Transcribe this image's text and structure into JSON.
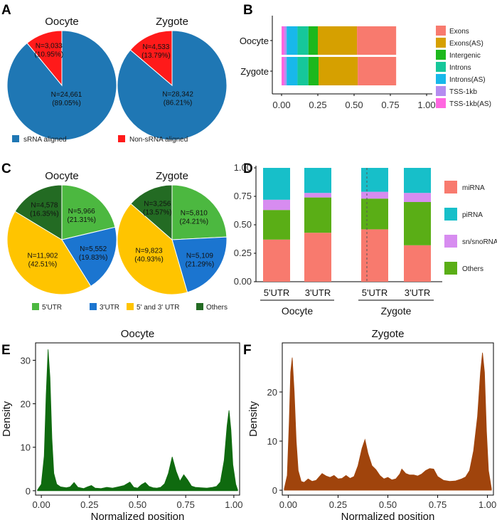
{
  "panels": {
    "A": "A",
    "B": "B",
    "C": "C",
    "D": "D",
    "E": "E",
    "F": "F"
  },
  "chart_data": [
    {
      "id": "A",
      "type": "pie",
      "titles": [
        "Oocyte",
        "Zygote"
      ],
      "legend": [
        {
          "label": "sRNA aligned",
          "color": "#1f77b4"
        },
        {
          "label": "Non-sRNA aligned",
          "color": "#ff1a1a"
        }
      ],
      "pies": [
        {
          "title": "Oocyte",
          "slices": [
            {
              "name": "sRNA aligned",
              "n": "N=24,661",
              "pct": "(89.05%)",
              "value": 89.05,
              "color": "#1f77b4"
            },
            {
              "name": "Non-sRNA aligned",
              "n": "N=3,033",
              "pct": "(10.95%)",
              "value": 10.95,
              "color": "#ff1a1a"
            }
          ]
        },
        {
          "title": "Zygote",
          "slices": [
            {
              "name": "sRNA aligned",
              "n": "N=28,342",
              "pct": "(86.21%)",
              "value": 86.21,
              "color": "#1f77b4"
            },
            {
              "name": "Non-sRNA aligned",
              "n": "N=4,533",
              "pct": "(13.79%)",
              "value": 13.79,
              "color": "#ff1a1a"
            }
          ]
        }
      ]
    },
    {
      "id": "B",
      "type": "bar",
      "orientation": "horizontal-stacked",
      "categories": [
        "Oocyte",
        "Zygote"
      ],
      "xlim": [
        0,
        1
      ],
      "xticks": [
        "0.00",
        "0.25",
        "0.50",
        "0.75",
        "1.00"
      ],
      "series": [
        {
          "name": "TSS-1kb(AS)",
          "color": "#ff66e0",
          "values": [
            0.02,
            0.02
          ]
        },
        {
          "name": "TSS-1kb",
          "color": "#b48cf0",
          "values": [
            0.015,
            0.015
          ]
        },
        {
          "name": "Introns(AS)",
          "color": "#18b8ea",
          "values": [
            0.075,
            0.075
          ]
        },
        {
          "name": "Introns",
          "color": "#16c79a",
          "values": [
            0.075,
            0.075
          ]
        },
        {
          "name": "Intergenic",
          "color": "#1db81d",
          "values": [
            0.065,
            0.07
          ]
        },
        {
          "name": "Exons(AS)",
          "color": "#d6a000",
          "values": [
            0.27,
            0.27
          ]
        },
        {
          "name": "Exons",
          "color": "#f87a6e",
          "values": [
            0.27,
            0.265
          ]
        }
      ],
      "legend_order": [
        "Exons",
        "Exons(AS)",
        "Intergenic",
        "Introns",
        "Introns(AS)",
        "TSS-1kb",
        "TSS-1kb(AS)"
      ]
    },
    {
      "id": "C",
      "type": "pie",
      "titles": [
        "Oocyte",
        "Zygote"
      ],
      "legend": [
        {
          "label": "5'UTR",
          "color": "#4cb840"
        },
        {
          "label": "3'UTR",
          "color": "#1b75d0"
        },
        {
          "label": "5' and 3' UTR",
          "color": "#ffc400"
        },
        {
          "label": "Others",
          "color": "#236b23"
        }
      ],
      "pies": [
        {
          "title": "Oocyte",
          "slices": [
            {
              "name": "5'UTR",
              "n": "N=5,966",
              "pct": "(21.31%)",
              "value": 21.31,
              "color": "#4cb840"
            },
            {
              "name": "3'UTR",
              "n": "N=5,552",
              "pct": "(19.83%)",
              "value": 19.83,
              "color": "#1b75d0"
            },
            {
              "name": "5' and 3' UTR",
              "n": "N=11,902",
              "pct": "(42.51%)",
              "value": 42.51,
              "color": "#ffc400"
            },
            {
              "name": "Others",
              "n": "N=4,578",
              "pct": "(16.35%)",
              "value": 16.35,
              "color": "#236b23"
            }
          ]
        },
        {
          "title": "Zygote",
          "slices": [
            {
              "name": "5'UTR",
              "n": "N=5,810",
              "pct": "(24.21%)",
              "value": 24.21,
              "color": "#4cb840"
            },
            {
              "name": "3'UTR",
              "n": "N=5,109",
              "pct": "(21.29%)",
              "value": 21.29,
              "color": "#1b75d0"
            },
            {
              "name": "5' and 3' UTR",
              "n": "N=9,823",
              "pct": "(40.93%)",
              "value": 40.93,
              "color": "#ffc400"
            },
            {
              "name": "Others",
              "n": "N=3,256",
              "pct": "(13.57%)",
              "value": 13.57,
              "color": "#236b23"
            }
          ]
        }
      ]
    },
    {
      "id": "D",
      "type": "bar",
      "orientation": "vertical-stacked",
      "ylim": [
        0,
        1
      ],
      "yticks": [
        "0.00",
        "0.25",
        "0.50",
        "0.75",
        "1.00"
      ],
      "categories": [
        "5'UTR",
        "3'UTR",
        "5'UTR",
        "3'UTR"
      ],
      "groups": [
        {
          "label": "Oocyte",
          "indices": [
            0,
            1
          ]
        },
        {
          "label": "Zygote",
          "indices": [
            2,
            3
          ]
        }
      ],
      "series": [
        {
          "name": "miRNA",
          "color": "#f87a6e",
          "values": [
            0.37,
            0.43,
            0.46,
            0.32
          ]
        },
        {
          "name": "Others",
          "color": "#5aae16",
          "values": [
            0.26,
            0.31,
            0.27,
            0.38
          ]
        },
        {
          "name": "sn/snoRNA",
          "color": "#d78cf0",
          "values": [
            0.09,
            0.04,
            0.06,
            0.08
          ]
        },
        {
          "name": "piRNA",
          "color": "#17bfc9",
          "values": [
            0.28,
            0.22,
            0.21,
            0.22
          ]
        }
      ],
      "legend_order": [
        "miRNA",
        "piRNA",
        "sn/snoRNA",
        "Others"
      ]
    },
    {
      "id": "E",
      "type": "area",
      "title": "Oocyte",
      "xlabel": "Normalized position",
      "ylabel": "Density",
      "xlim": [
        -0.03,
        1.03
      ],
      "ylim": [
        -1,
        34
      ],
      "xticks": [
        "0.00",
        "0.25",
        "0.50",
        "0.75",
        "1.00"
      ],
      "yticks": [
        "0",
        "10",
        "20",
        "30"
      ],
      "color": "#0f6a0f",
      "points": [
        [
          -0.02,
          0.2
        ],
        [
          0.0,
          1.5
        ],
        [
          0.015,
          8
        ],
        [
          0.025,
          22
        ],
        [
          0.035,
          32.5
        ],
        [
          0.045,
          26
        ],
        [
          0.055,
          12
        ],
        [
          0.065,
          4
        ],
        [
          0.08,
          1.5
        ],
        [
          0.1,
          0.9
        ],
        [
          0.13,
          0.7
        ],
        [
          0.15,
          0.9
        ],
        [
          0.17,
          1.9
        ],
        [
          0.19,
          0.8
        ],
        [
          0.22,
          0.5
        ],
        [
          0.24,
          0.9
        ],
        [
          0.26,
          1.2
        ],
        [
          0.28,
          0.6
        ],
        [
          0.31,
          0.5
        ],
        [
          0.34,
          0.8
        ],
        [
          0.37,
          0.6
        ],
        [
          0.4,
          0.9
        ],
        [
          0.43,
          1.2
        ],
        [
          0.46,
          2.0
        ],
        [
          0.48,
          0.8
        ],
        [
          0.5,
          0.6
        ],
        [
          0.52,
          1.4
        ],
        [
          0.54,
          1.9
        ],
        [
          0.56,
          1.0
        ],
        [
          0.58,
          0.7
        ],
        [
          0.6,
          0.6
        ],
        [
          0.62,
          0.8
        ],
        [
          0.64,
          1.6
        ],
        [
          0.66,
          4
        ],
        [
          0.68,
          7.8
        ],
        [
          0.7,
          4.5
        ],
        [
          0.72,
          2.2
        ],
        [
          0.74,
          3.7
        ],
        [
          0.76,
          2.5
        ],
        [
          0.78,
          1.1
        ],
        [
          0.8,
          0.8
        ],
        [
          0.83,
          0.7
        ],
        [
          0.86,
          0.6
        ],
        [
          0.89,
          0.8
        ],
        [
          0.91,
          1.0
        ],
        [
          0.93,
          2.0
        ],
        [
          0.95,
          7
        ],
        [
          0.965,
          15
        ],
        [
          0.975,
          18.5
        ],
        [
          0.985,
          14
        ],
        [
          0.995,
          6
        ],
        [
          1.01,
          1.5
        ],
        [
          1.02,
          0.2
        ]
      ]
    },
    {
      "id": "F",
      "type": "area",
      "title": "Zygote",
      "xlabel": "Normalized position",
      "ylabel": "Density",
      "xlim": [
        -0.03,
        1.03
      ],
      "ylim": [
        -1,
        30
      ],
      "xticks": [
        "0.00",
        "0.25",
        "0.50",
        "0.75",
        "1.00"
      ],
      "yticks": [
        "0",
        "10",
        "20"
      ],
      "color": "#a0440c",
      "points": [
        [
          -0.02,
          0.3
        ],
        [
          -0.005,
          3
        ],
        [
          0.005,
          14
        ],
        [
          0.012,
          24
        ],
        [
          0.02,
          27
        ],
        [
          0.03,
          20
        ],
        [
          0.04,
          10
        ],
        [
          0.05,
          4
        ],
        [
          0.065,
          1.8
        ],
        [
          0.08,
          1.6
        ],
        [
          0.1,
          2.3
        ],
        [
          0.12,
          1.8
        ],
        [
          0.14,
          2.0
        ],
        [
          0.17,
          3.4
        ],
        [
          0.19,
          2.9
        ],
        [
          0.21,
          2.6
        ],
        [
          0.23,
          3.0
        ],
        [
          0.25,
          2.3
        ],
        [
          0.27,
          2.4
        ],
        [
          0.29,
          3.0
        ],
        [
          0.31,
          2.4
        ],
        [
          0.33,
          2.8
        ],
        [
          0.35,
          5
        ],
        [
          0.37,
          8.5
        ],
        [
          0.385,
          10.3
        ],
        [
          0.4,
          7.5
        ],
        [
          0.42,
          5
        ],
        [
          0.44,
          4.2
        ],
        [
          0.46,
          3.0
        ],
        [
          0.48,
          2.3
        ],
        [
          0.5,
          2.6
        ],
        [
          0.52,
          2.1
        ],
        [
          0.54,
          2.3
        ],
        [
          0.56,
          3.3
        ],
        [
          0.57,
          4.3
        ],
        [
          0.59,
          3.4
        ],
        [
          0.61,
          3.1
        ],
        [
          0.63,
          3.1
        ],
        [
          0.65,
          2.9
        ],
        [
          0.67,
          3.3
        ],
        [
          0.69,
          4.0
        ],
        [
          0.71,
          4.4
        ],
        [
          0.73,
          4.3
        ],
        [
          0.75,
          2.8
        ],
        [
          0.78,
          2.0
        ],
        [
          0.81,
          1.8
        ],
        [
          0.84,
          1.9
        ],
        [
          0.87,
          2.3
        ],
        [
          0.89,
          2.7
        ],
        [
          0.91,
          4
        ],
        [
          0.93,
          8
        ],
        [
          0.95,
          15
        ],
        [
          0.965,
          24
        ],
        [
          0.975,
          28
        ],
        [
          0.985,
          24
        ],
        [
          0.995,
          12
        ],
        [
          1.005,
          4
        ],
        [
          1.02,
          0.3
        ]
      ]
    }
  ]
}
